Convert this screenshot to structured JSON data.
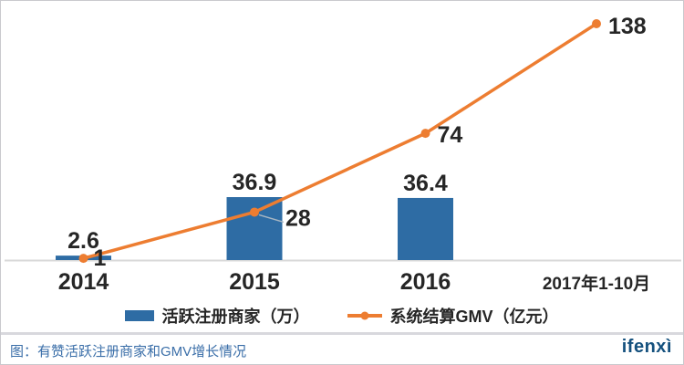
{
  "chart_data": {
    "type": "combo",
    "categories": [
      "2014",
      "2015",
      "2016",
      "2017年1-10月"
    ],
    "series": [
      {
        "name": "活跃注册商家（万）",
        "type": "bar",
        "color": "#2E6CA4",
        "values": [
          2.6,
          36.9,
          36.4,
          null
        ],
        "data_labels": [
          "2.6",
          "36.9",
          "36.4",
          ""
        ]
      },
      {
        "name": "系统结算GMV（亿元）",
        "type": "line",
        "color": "#ED7D31",
        "values": [
          1,
          28,
          74,
          138
        ],
        "data_labels": [
          "1",
          "28",
          "74",
          "138"
        ]
      }
    ],
    "legend_position": "bottom",
    "gridlines": false,
    "axes_visible": false,
    "baseline_color": "#D9D9D9",
    "label_color": "#262626",
    "leader_line_color": "#A8B6C3"
  },
  "footer": {
    "caption": "图：有赞活跃注册商家和GMV增长情况",
    "caption_color": "#3A6EA8",
    "logo": "ifenxì",
    "logo_color": "#15517E"
  }
}
